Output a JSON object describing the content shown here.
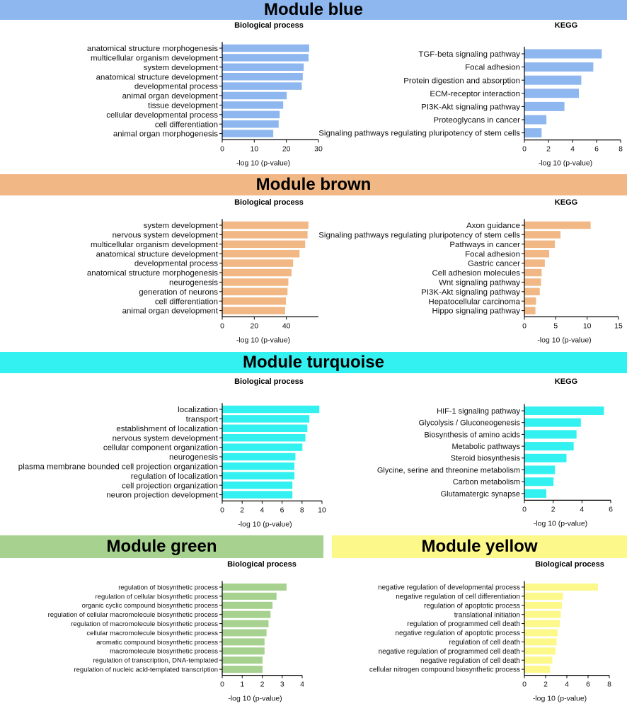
{
  "modules": [
    {
      "name": "Module blue",
      "color": "#8fb7ef"
    },
    {
      "name": "Module brown",
      "color": "#f1b886"
    },
    {
      "name": "Module turquoise",
      "color": "#33f1f1"
    },
    {
      "name": "Module green",
      "color": "#a6d18f"
    },
    {
      "name": "Module yellow",
      "color": "#fdf88a"
    }
  ],
  "chart_data": [
    {
      "type": "bar",
      "orientation": "horizontal",
      "module": "blue",
      "title": "Biological process",
      "xlabel": "-log 10 (p-value)",
      "ylabel": "",
      "color": "#8fb7ef",
      "xlim": [
        0,
        30
      ],
      "xticks": [
        "0",
        "10",
        "20",
        "30"
      ],
      "categories": [
        "anatomical structure morphogenesis",
        "multicellular organism development",
        "system development",
        "anatomical structure development",
        "developmental process",
        "animal organ development",
        "tissue development",
        "cellular developmental process",
        "cell differentiation",
        "animal organ morphogenesis"
      ],
      "values": [
        27.0,
        26.8,
        25.3,
        25.0,
        24.7,
        20.0,
        18.9,
        17.8,
        17.5,
        15.8
      ]
    },
    {
      "type": "bar",
      "orientation": "horizontal",
      "module": "blue",
      "title": "KEGG",
      "xlabel": "-log 10 (p-value)",
      "ylabel": "",
      "color": "#8fb7ef",
      "xlim": [
        0,
        8
      ],
      "xticks": [
        "0",
        "2",
        "4",
        "6",
        "8"
      ],
      "categories": [
        "TGF-beta signaling pathway",
        "Focal adhesion",
        "Protein digestion and absorption",
        "ECM-receptor interaction",
        "PI3K-Akt signaling pathway",
        "Proteoglycans in cancer",
        "Signaling pathways regulating pluripotency of stem cells"
      ],
      "values": [
        6.4,
        5.7,
        4.7,
        4.5,
        3.3,
        1.8,
        1.4
      ]
    },
    {
      "type": "bar",
      "orientation": "horizontal",
      "module": "brown",
      "title": "Biological process",
      "xlabel": "-log 10 (p-value)",
      "ylabel": "",
      "color": "#f1b886",
      "xlim": [
        0,
        60
      ],
      "xticks": [
        "0",
        "20",
        "40"
      ],
      "categories": [
        "system development",
        "nervous system development",
        "multicellular organism development",
        "anatomical structure development",
        "developmental process",
        "anatomical structure morphogenesis",
        "neurogenesis",
        "generation of neurons",
        "cell differentiation",
        "animal organ development"
      ],
      "values": [
        53.5,
        53.0,
        51.5,
        48.0,
        44.0,
        43.0,
        41.0,
        40.5,
        39.5,
        39.0
      ]
    },
    {
      "type": "bar",
      "orientation": "horizontal",
      "module": "brown",
      "title": "KEGG",
      "xlabel": "-log 10 (p-value)",
      "ylabel": "",
      "color": "#f1b886",
      "xlim": [
        0,
        15
      ],
      "xticks": [
        "0",
        "5",
        "10",
        "15"
      ],
      "categories": [
        "Axon guidance",
        "Signaling pathways regulating pluripotency of stem cells",
        "Pathways in cancer",
        "Focal adhesion",
        "Gastric cancer",
        "Cell adhesion molecules",
        "Wnt signaling pathway",
        "PI3K-Akt signaling pathway",
        "Hepatocellular carcinoma",
        "Hippo signaling pathway"
      ],
      "values": [
        10.5,
        5.7,
        4.8,
        3.9,
        3.2,
        2.7,
        2.6,
        2.4,
        1.8,
        1.7
      ]
    },
    {
      "type": "bar",
      "orientation": "horizontal",
      "module": "turquoise",
      "title": "Biological process",
      "xlabel": "-log 10 (p-value)",
      "ylabel": "",
      "color": "#33f1f1",
      "xlim": [
        0,
        10
      ],
      "xticks": [
        "0",
        "2",
        "4",
        "6",
        "8",
        "10"
      ],
      "categories": [
        "localization",
        "transport",
        "establishment of localization",
        "nervous system development",
        "cellular component organization",
        "neurogenesis",
        "plasma membrane bounded cell projection organization",
        "regulation of localization",
        "cell projection organization",
        "neuron projection development"
      ],
      "values": [
        9.7,
        8.7,
        8.5,
        8.3,
        8.0,
        7.3,
        7.2,
        7.2,
        7.0,
        7.0
      ]
    },
    {
      "type": "bar",
      "orientation": "horizontal",
      "module": "turquoise",
      "title": "KEGG",
      "xlabel": "-log 10 (p-value)",
      "ylabel": "",
      "color": "#33f1f1",
      "xlim": [
        0,
        6
      ],
      "xticks": [
        "0",
        "2",
        "4",
        "6"
      ],
      "categories": [
        "HIF-1 signaling pathway",
        "Glycolysis / Gluconeogenesis",
        "Biosynthesis of amino acids",
        "Metabolic pathways",
        "Steroid biosynthesis",
        "Glycine, serine and threonine metabolism",
        "Carbon metabolism",
        "Glutamatergic synapse"
      ],
      "values": [
        5.5,
        3.9,
        3.6,
        3.4,
        2.9,
        2.1,
        2.0,
        1.5
      ]
    },
    {
      "type": "bar",
      "orientation": "horizontal",
      "module": "green",
      "title": "Biological process",
      "xlabel": "-log 10 (p-value)",
      "ylabel": "",
      "color": "#a6d18f",
      "xlim": [
        0,
        4
      ],
      "xticks": [
        "0",
        "1",
        "2",
        "3",
        "4"
      ],
      "categories": [
        "regulation of biosynthetic process",
        "regulation of cellular biosynthetic process",
        "organic cyclic compound biosynthetic process",
        "regulation of cellular macromolecule biosynthetic process",
        "regulation of macromolecule biosynthetic process",
        "cellular macromolecule biosynthetic process",
        "aromatic compound biosynthetic process",
        "macromolecule biosynthetic process",
        "regulation of transcription, DNA-templated",
        "regulation of nucleic acid-templated transcription"
      ],
      "values": [
        3.2,
        2.7,
        2.5,
        2.4,
        2.3,
        2.2,
        2.1,
        2.1,
        2.0,
        2.0
      ]
    },
    {
      "type": "bar",
      "orientation": "horizontal",
      "module": "yellow",
      "title": "Biological process",
      "xlabel": "-log 10 (p-value)",
      "ylabel": "",
      "color": "#fdf88a",
      "xlim": [
        0,
        8
      ],
      "xticks": [
        "0",
        "2",
        "4",
        "6",
        "8"
      ],
      "categories": [
        "negative regulation of developmental process",
        "negative regulation of cell differentiation",
        "regulation of apoptotic process",
        "translational initiation",
        "regulation of programmed cell death",
        "negative regulation of apoptotic process",
        "regulation of cell death",
        "negative regulation of programmed cell death",
        "negative regulation of cell death",
        "cellular nitrogen compound biosynthetic process"
      ],
      "values": [
        6.9,
        3.6,
        3.5,
        3.4,
        3.3,
        3.1,
        3.0,
        2.9,
        2.6,
        2.4
      ]
    }
  ]
}
